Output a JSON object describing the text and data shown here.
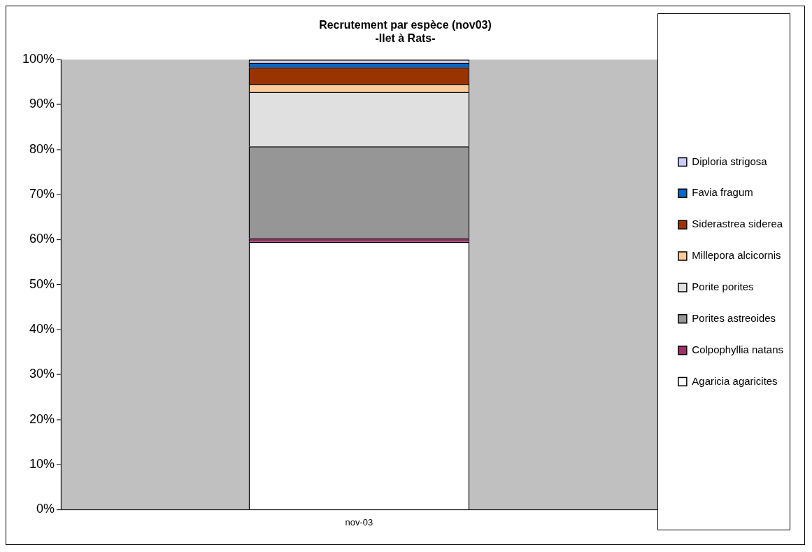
{
  "chart_data": {
    "type": "bar",
    "title": [
      "Recrutement par espèce (nov03)",
      "-Ilet à Rats-"
    ],
    "categories": [
      "nov-03"
    ],
    "stacked": true,
    "legend": "right",
    "grid": false,
    "ylim": [
      0,
      100
    ],
    "yticks": [
      {
        "value": 0,
        "label": "0%"
      },
      {
        "value": 10,
        "label": "10%"
      },
      {
        "value": 20,
        "label": "20%"
      },
      {
        "value": 30,
        "label": "30%"
      },
      {
        "value": 40,
        "label": "40%"
      },
      {
        "value": 50,
        "label": "50%"
      },
      {
        "value": 60,
        "label": "60%"
      },
      {
        "value": 70,
        "label": "70%"
      },
      {
        "value": 80,
        "label": "80%"
      },
      {
        "value": 90,
        "label": "90%"
      },
      {
        "value": 100,
        "label": "100%"
      }
    ],
    "series": [
      {
        "name": "Agaricia agaricites",
        "color": "#ffffff",
        "values": [
          59.5
        ]
      },
      {
        "name": "Colpophyllia natans",
        "color": "#993366",
        "values": [
          0.8
        ]
      },
      {
        "name": "Porites astreoides",
        "color": "#969696",
        "values": [
          20.4
        ]
      },
      {
        "name": "Porite porites",
        "color": "#e0e0e0",
        "values": [
          12.1
        ]
      },
      {
        "name": "Millepora alcicornis",
        "color": "#ffcc99",
        "values": [
          1.8
        ]
      },
      {
        "name": "Siderastrea siderea",
        "color": "#993300",
        "values": [
          3.7
        ]
      },
      {
        "name": "Favia fragum",
        "color": "#0066cc",
        "values": [
          1.0
        ]
      },
      {
        "name": "Diploria strigosa",
        "color": "#ccccff",
        "values": [
          0.7
        ]
      }
    ]
  }
}
